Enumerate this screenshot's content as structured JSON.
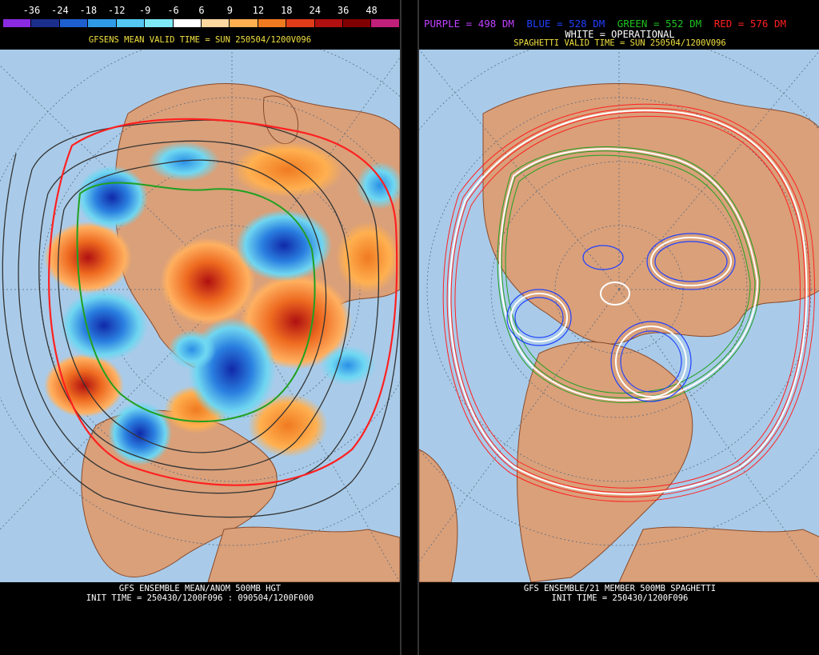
{
  "left": {
    "scale_labels": [
      "-36",
      "-24",
      "-18",
      "-12",
      "-9",
      "-6",
      "6",
      "9",
      "12",
      "18",
      "24",
      "36",
      "48"
    ],
    "scale_colors": [
      "#8a2be2",
      "#1c2e8c",
      "#1e5fcf",
      "#2f9be6",
      "#54c8f2",
      "#7ee8f5",
      "#ffffff",
      "#ffd8a0",
      "#ffb050",
      "#f07a20",
      "#e03c1a",
      "#b01010",
      "#800000",
      "#c0207a"
    ],
    "valid_title": "GFSENS MEAN VALID TIME = SUN 250504/1200V096",
    "footer_line1": "GFS ENSEMBLE MEAN/ANOM 500MB HGT",
    "footer_line2": "INIT TIME = 250430/1200F096 : 090504/1200F000"
  },
  "right": {
    "legend": {
      "purple": "PURPLE = 498 DM",
      "blue": "BLUE = 528 DM",
      "green": "GREEN = 552 DM",
      "red": "RED = 576 DM"
    },
    "operational": "WHITE = OPERATIONAL",
    "valid_title": "SPAGHETTI VALID TIME = SUN 250504/1200V096",
    "footer_line1": "GFS ENSEMBLE/21 MEMBER 500MB SPAGHETTI",
    "footer_line2": "INIT TIME = 250430/1200F096"
  },
  "colors": {
    "ocean": "#a9cbe9",
    "land": "#d9a07a",
    "border": "#8a4a2a",
    "purple": "#c040ff",
    "blue": "#2040ff",
    "green": "#20c020",
    "red": "#ff2020",
    "title_yellow": "#f0e040"
  }
}
